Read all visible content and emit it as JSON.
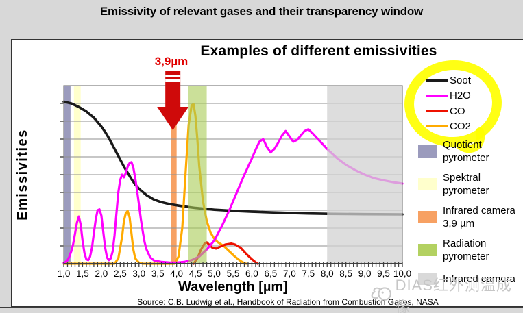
{
  "header": {
    "title": "Emissivity of relevant gases and their transparency window"
  },
  "chart": {
    "title": "Examples of different emissivities",
    "annotation": "3,9µm",
    "xlabel": "Wavelength [µm]",
    "ylabel": "Emissivities",
    "source": "Source: C.B. Ludwig et al., Handbook of Radiation from Combustion Gases, NASA",
    "watermark": "DIAS红外测温成像"
  },
  "legend": {
    "items": [
      {
        "label": "Soot",
        "color": "#1a1a1a"
      },
      {
        "label": "H2O",
        "color": "#ff00ff"
      },
      {
        "label": "CO",
        "color": "#ee1100"
      },
      {
        "label": "CO2",
        "color": "#ffaa00"
      }
    ],
    "highlight_color": "#ffff00"
  },
  "side_legend": {
    "items": [
      {
        "label_line1": "Quotient",
        "label_line2": "pyrometer",
        "color": "#9b9bbd"
      },
      {
        "label_line1": "Spektral",
        "label_line2": "pyrometer",
        "color": "#ffffcc"
      },
      {
        "label_line1": "Infrared camera",
        "label_line2": "3,9 µm",
        "color": "#f7a163"
      },
      {
        "label_line1": "Radiation",
        "label_line2": "pyrometer",
        "color": "#b3d161"
      },
      {
        "label_line1": "Infrared camera",
        "label_line2": "",
        "color": "#d9d9d9"
      }
    ]
  },
  "chart_data": {
    "type": "line",
    "title": "Examples of different emissivities",
    "xlabel": "Wavelength [µm]",
    "ylabel": "Emissivities",
    "xlim": [
      1.0,
      10.0
    ],
    "ylim": [
      0,
      1.0
    ],
    "grid": "horizontal gridlines every 0.1, no numeric y tick labels",
    "legend_position": "top-right, circled with yellow highlighter",
    "x_tick_labels": [
      "1,0",
      "1,5",
      "2,0",
      "2,5",
      "3,0",
      "3,5",
      "4,0",
      "4,5",
      "5,0",
      "5,5",
      "6,0",
      "6,5",
      "7,0",
      "7,5",
      "8,0",
      "8,5",
      "9,0",
      "9,5",
      "10,0"
    ],
    "annotation": {
      "text": "3,9µm",
      "x_um": 3.9,
      "color": "#cf0a0a"
    },
    "bands": [
      {
        "label": "Quotient pyrometer",
        "from": 1.0,
        "to": 1.18,
        "color": "#9b9bbd",
        "opacity": 1,
        "layer": "back"
      },
      {
        "label": "Spektral pyrometer",
        "from": 1.27,
        "to": 1.45,
        "color": "#ffffcc",
        "opacity": 1,
        "layer": "back"
      },
      {
        "label": "Infrared camera 3,9 µm",
        "from": 3.85,
        "to": 4.0,
        "color": "#f7a163",
        "opacity": 1,
        "layer": "back"
      },
      {
        "label": "Radiation pyrometer",
        "from": 4.3,
        "to": 4.8,
        "color": "#a8cc55",
        "opacity": 0.6,
        "layer": "front"
      },
      {
        "label": "Infrared camera",
        "from": 8.0,
        "to": 10.0,
        "color": "#d2d2d2",
        "opacity": 0.75,
        "layer": "front"
      }
    ],
    "series": [
      {
        "name": "Soot",
        "color": "#1a1a1a",
        "width": 3.6,
        "points": [
          [
            1.0,
            0.91
          ],
          [
            1.2,
            0.9
          ],
          [
            1.4,
            0.88
          ],
          [
            1.6,
            0.855
          ],
          [
            1.8,
            0.82
          ],
          [
            2.0,
            0.77
          ],
          [
            2.1,
            0.74
          ],
          [
            2.2,
            0.705
          ],
          [
            2.3,
            0.665
          ],
          [
            2.4,
            0.625
          ],
          [
            2.5,
            0.585
          ],
          [
            2.6,
            0.545
          ],
          [
            2.7,
            0.51
          ],
          [
            2.8,
            0.475
          ],
          [
            2.9,
            0.445
          ],
          [
            3.0,
            0.42
          ],
          [
            3.2,
            0.385
          ],
          [
            3.4,
            0.36
          ],
          [
            3.6,
            0.345
          ],
          [
            3.8,
            0.335
          ],
          [
            4.0,
            0.328
          ],
          [
            4.25,
            0.32
          ],
          [
            4.5,
            0.313
          ],
          [
            5.0,
            0.303
          ],
          [
            5.5,
            0.297
          ],
          [
            6.0,
            0.292
          ],
          [
            6.5,
            0.288
          ],
          [
            7.0,
            0.285
          ],
          [
            7.5,
            0.282
          ],
          [
            8.0,
            0.28
          ],
          [
            9.0,
            0.278
          ],
          [
            10.0,
            0.277
          ]
        ]
      },
      {
        "name": "CO2",
        "color": "#ffaa00",
        "width": 3.2,
        "points": [
          [
            1.0,
            0
          ],
          [
            2.35,
            0
          ],
          [
            2.45,
            0.03
          ],
          [
            2.55,
            0.15
          ],
          [
            2.6,
            0.24
          ],
          [
            2.65,
            0.285
          ],
          [
            2.7,
            0.295
          ],
          [
            2.75,
            0.26
          ],
          [
            2.8,
            0.17
          ],
          [
            2.85,
            0.08
          ],
          [
            2.9,
            0.03
          ],
          [
            3.0,
            0.005
          ],
          [
            3.1,
            0
          ],
          [
            3.95,
            0
          ],
          [
            4.05,
            0.04
          ],
          [
            4.15,
            0.2
          ],
          [
            4.25,
            0.55
          ],
          [
            4.32,
            0.78
          ],
          [
            4.4,
            0.89
          ],
          [
            4.45,
            0.895
          ],
          [
            4.5,
            0.83
          ],
          [
            4.55,
            0.7
          ],
          [
            4.6,
            0.55
          ],
          [
            4.7,
            0.35
          ],
          [
            4.8,
            0.24
          ],
          [
            4.9,
            0.175
          ],
          [
            5.0,
            0.14
          ],
          [
            5.1,
            0.12
          ],
          [
            5.25,
            0.1
          ],
          [
            5.4,
            0.07
          ],
          [
            5.55,
            0.04
          ],
          [
            5.7,
            0.015
          ],
          [
            5.8,
            0.003
          ],
          [
            5.85,
            0
          ]
        ]
      },
      {
        "name": "CO",
        "color": "#ee1100",
        "width": 3.2,
        "points": [
          [
            4.45,
            0.0
          ],
          [
            4.55,
            0.03
          ],
          [
            4.65,
            0.08
          ],
          [
            4.75,
            0.115
          ],
          [
            4.8,
            0.12
          ],
          [
            4.85,
            0.11
          ],
          [
            4.95,
            0.09
          ],
          [
            5.05,
            0.085
          ],
          [
            5.15,
            0.095
          ],
          [
            5.3,
            0.108
          ],
          [
            5.45,
            0.113
          ],
          [
            5.55,
            0.108
          ],
          [
            5.7,
            0.09
          ],
          [
            5.85,
            0.055
          ],
          [
            6.0,
            0.025
          ],
          [
            6.1,
            0.008
          ],
          [
            6.15,
            0.0
          ]
        ]
      },
      {
        "name": "H2O",
        "color": "#ff00ff",
        "width": 3.2,
        "points": [
          [
            1.0,
            0.005
          ],
          [
            1.05,
            0.01
          ],
          [
            1.1,
            0.02
          ],
          [
            1.15,
            0.04
          ],
          [
            1.2,
            0.07
          ],
          [
            1.25,
            0.11
          ],
          [
            1.3,
            0.17
          ],
          [
            1.35,
            0.23
          ],
          [
            1.4,
            0.265
          ],
          [
            1.45,
            0.22
          ],
          [
            1.5,
            0.13
          ],
          [
            1.55,
            0.06
          ],
          [
            1.6,
            0.025
          ],
          [
            1.65,
            0.02
          ],
          [
            1.7,
            0.04
          ],
          [
            1.75,
            0.09
          ],
          [
            1.8,
            0.17
          ],
          [
            1.85,
            0.25
          ],
          [
            1.9,
            0.3
          ],
          [
            1.95,
            0.305
          ],
          [
            2.0,
            0.27
          ],
          [
            2.05,
            0.18
          ],
          [
            2.1,
            0.09
          ],
          [
            2.15,
            0.035
          ],
          [
            2.2,
            0.02
          ],
          [
            2.25,
            0.03
          ],
          [
            2.3,
            0.07
          ],
          [
            2.35,
            0.16
          ],
          [
            2.4,
            0.28
          ],
          [
            2.45,
            0.4
          ],
          [
            2.5,
            0.47
          ],
          [
            2.55,
            0.5
          ],
          [
            2.6,
            0.485
          ],
          [
            2.65,
            0.51
          ],
          [
            2.7,
            0.545
          ],
          [
            2.75,
            0.565
          ],
          [
            2.8,
            0.57
          ],
          [
            2.85,
            0.54
          ],
          [
            2.9,
            0.48
          ],
          [
            2.95,
            0.41
          ],
          [
            3.0,
            0.33
          ],
          [
            3.05,
            0.25
          ],
          [
            3.1,
            0.18
          ],
          [
            3.15,
            0.12
          ],
          [
            3.2,
            0.08
          ],
          [
            3.3,
            0.035
          ],
          [
            3.4,
            0.018
          ],
          [
            3.6,
            0.01
          ],
          [
            3.8,
            0.007
          ],
          [
            4.0,
            0.006
          ],
          [
            4.2,
            0.01
          ],
          [
            4.4,
            0.02
          ],
          [
            4.6,
            0.04
          ],
          [
            4.8,
            0.08
          ],
          [
            5.0,
            0.13
          ],
          [
            5.2,
            0.21
          ],
          [
            5.4,
            0.3
          ],
          [
            5.6,
            0.4
          ],
          [
            5.8,
            0.5
          ],
          [
            6.0,
            0.59
          ],
          [
            6.1,
            0.64
          ],
          [
            6.2,
            0.685
          ],
          [
            6.3,
            0.7
          ],
          [
            6.4,
            0.655
          ],
          [
            6.5,
            0.625
          ],
          [
            6.6,
            0.645
          ],
          [
            6.7,
            0.68
          ],
          [
            6.8,
            0.72
          ],
          [
            6.9,
            0.745
          ],
          [
            7.0,
            0.715
          ],
          [
            7.1,
            0.685
          ],
          [
            7.2,
            0.695
          ],
          [
            7.3,
            0.72
          ],
          [
            7.4,
            0.745
          ],
          [
            7.5,
            0.755
          ],
          [
            7.6,
            0.735
          ],
          [
            7.8,
            0.69
          ],
          [
            8.0,
            0.645
          ],
          [
            8.25,
            0.595
          ],
          [
            8.5,
            0.555
          ],
          [
            8.75,
            0.525
          ],
          [
            9.0,
            0.5
          ],
          [
            9.25,
            0.48
          ],
          [
            9.5,
            0.468
          ],
          [
            9.75,
            0.458
          ],
          [
            10.0,
            0.45
          ]
        ]
      }
    ]
  }
}
